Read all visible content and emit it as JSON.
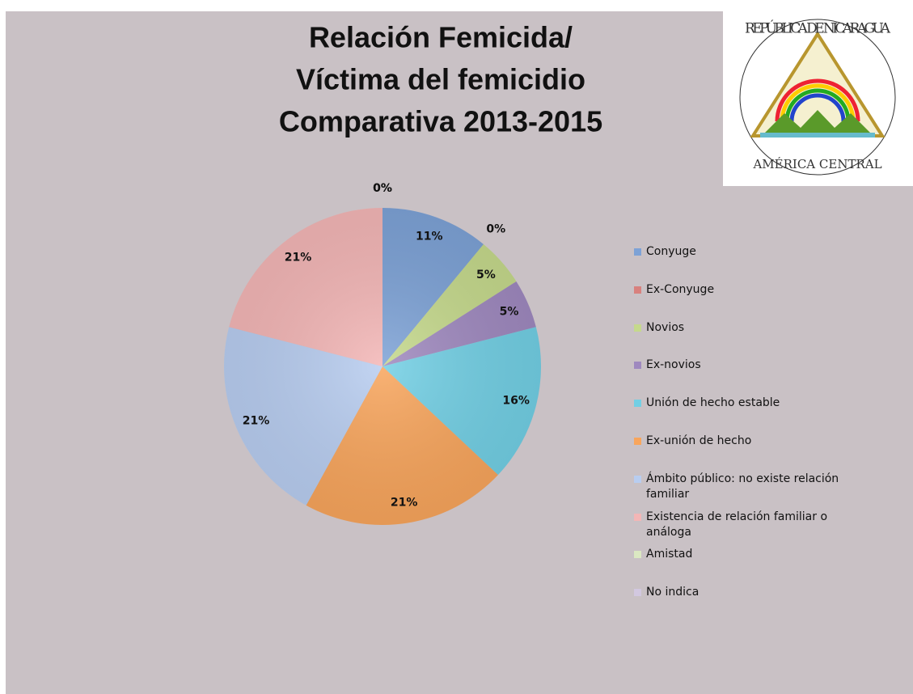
{
  "chart_data": {
    "type": "pie",
    "title": [
      "Relación Femicida/",
      "Víctima del femicidio",
      "Comparativa 2013-2015"
    ],
    "categories": [
      "Conyuge",
      "Ex-Conyuge",
      "Novios",
      "Ex-novios",
      "Unión de hecho estable",
      "Ex-unión de hecho",
      "Ámbito público: no existe relación familiar",
      "Existencia de relación familiar o análoga",
      "Amistad",
      "No indica"
    ],
    "values": [
      11,
      0,
      5,
      5,
      16,
      21,
      21,
      21,
      0,
      0
    ],
    "value_labels": [
      "11%",
      "0%",
      "5%",
      "5%",
      "16%",
      "21%",
      "21%",
      "21%",
      "0%",
      "0%"
    ],
    "colors": [
      "#7da2d6",
      "#d8817e",
      "#c5d98c",
      "#9f89bf",
      "#72cfe4",
      "#f8a55c",
      "#b8cdf0",
      "#f3b6b6",
      "#dbe8c2",
      "#d2c8e0"
    ],
    "legend": "right"
  },
  "emblem": {
    "top": "REPÚBLICA DE NICARAGUA",
    "bottom": "AMÉRICA CENTRAL"
  }
}
